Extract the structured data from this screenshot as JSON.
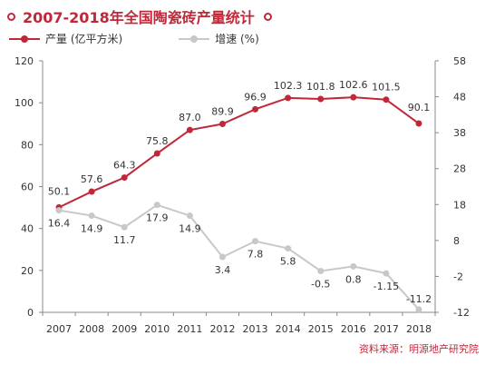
{
  "title": "2007-2018年全国陶瓷砖产量统计",
  "source": "资料来源：明源地产研究院",
  "colors": {
    "accent": "#c0283a",
    "secondary": "#c8c8c8"
  },
  "chart_data": {
    "type": "line",
    "categories": [
      "2007",
      "2008",
      "2009",
      "2010",
      "2011",
      "2012",
      "2013",
      "2014",
      "2015",
      "2016",
      "2017",
      "2018"
    ],
    "series": [
      {
        "name": "产量 (亿平方米)",
        "axis": "left",
        "color": "#c0283a",
        "values": [
          50.1,
          57.6,
          64.3,
          75.8,
          87.0,
          89.9,
          96.9,
          102.3,
          101.8,
          102.6,
          101.5,
          90.1
        ],
        "labels": [
          "50.1",
          "57.6",
          "64.3",
          "75.8",
          "87.0",
          "89.9",
          "96.9",
          "102.3",
          "101.8",
          "102.6",
          "101.5",
          "90.1"
        ]
      },
      {
        "name": "增速 (%)",
        "axis": "right",
        "color": "#c8c8c8",
        "values": [
          16.4,
          14.9,
          11.7,
          17.9,
          14.9,
          3.4,
          7.8,
          5.8,
          -0.5,
          0.8,
          -1.15,
          -11.2
        ],
        "labels": [
          "16.4",
          "14.9",
          "11.7",
          "17.9",
          "14.9",
          "3.4",
          "7.8",
          "5.8",
          "-0.5",
          "0.8",
          "-1.15",
          "-11.2"
        ]
      }
    ],
    "ylim_left": [
      0,
      120
    ],
    "yticks_left": [
      0,
      20,
      40,
      60,
      80,
      100,
      120
    ],
    "ylim_right": [
      -12,
      58
    ],
    "yticks_right": [
      -12,
      -2,
      8,
      18,
      28,
      38,
      48,
      58
    ],
    "grid": false,
    "legend": "top-left"
  }
}
